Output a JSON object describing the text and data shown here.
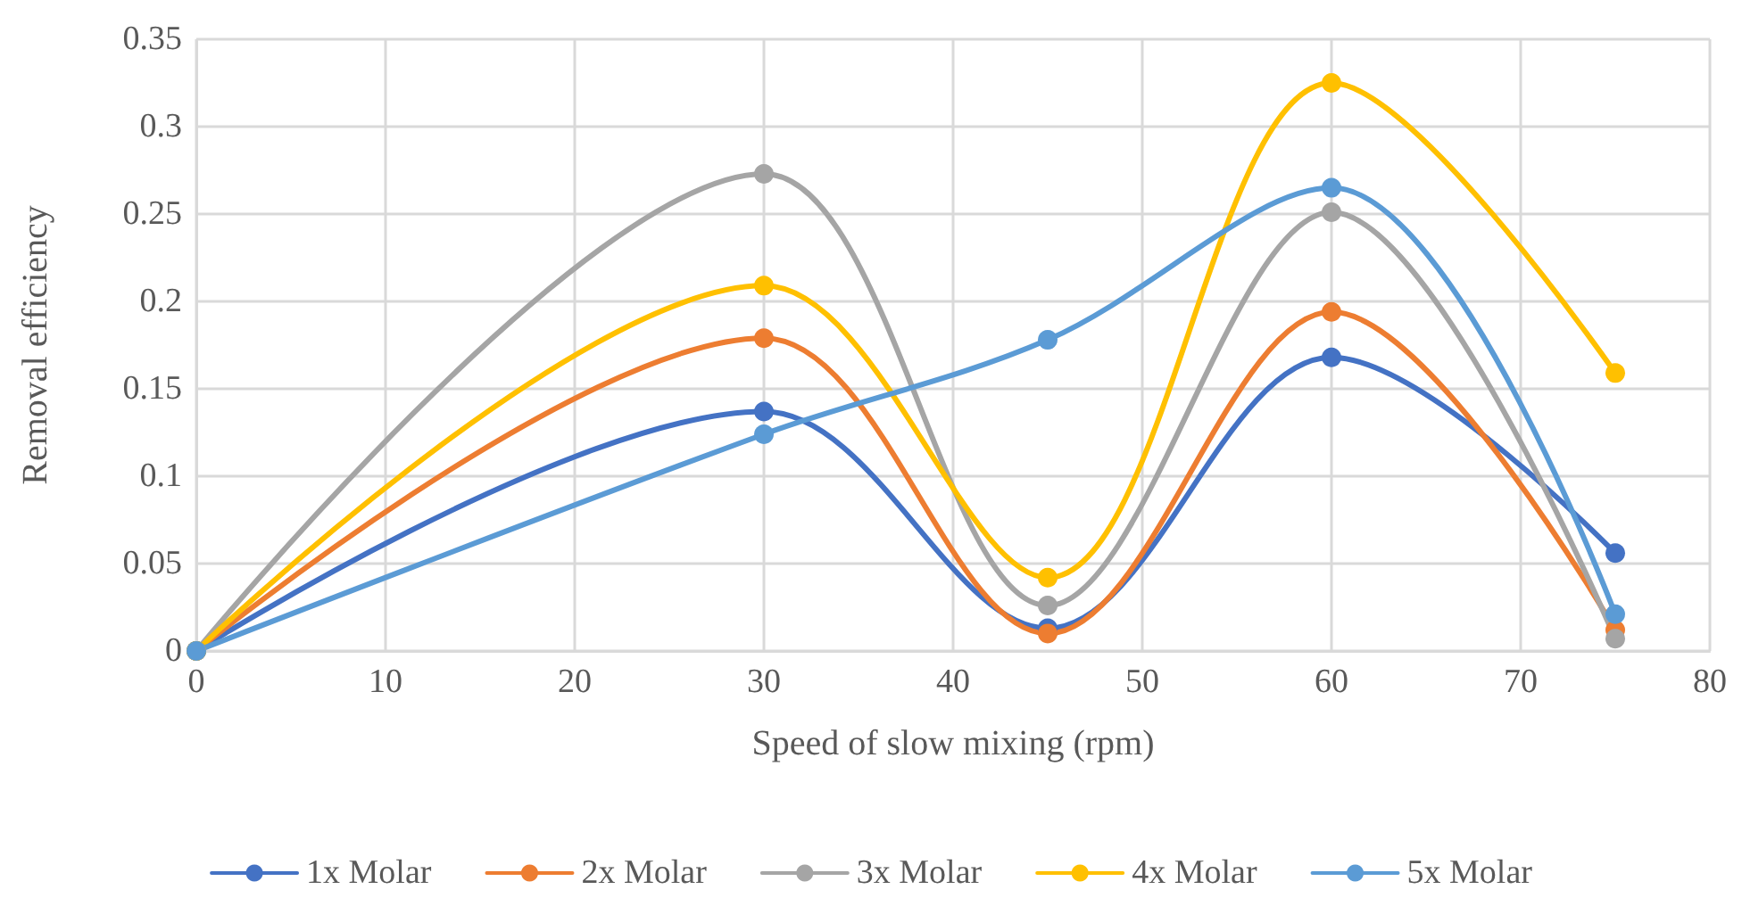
{
  "chart_data": {
    "type": "line",
    "xlabel": "Speed of slow mixing (rpm)",
    "ylabel": "Removal efficiency",
    "x": [
      0,
      30,
      45,
      60,
      75
    ],
    "series": [
      {
        "name": "1x Molar",
        "color": "#4472c4",
        "values": [
          0,
          0.137,
          0.013,
          0.168,
          0.056
        ]
      },
      {
        "name": "2x Molar",
        "color": "#ed7d31",
        "values": [
          0,
          0.179,
          0.01,
          0.194,
          0.012
        ]
      },
      {
        "name": "3x Molar",
        "color": "#a5a5a5",
        "values": [
          0,
          0.273,
          0.026,
          0.251,
          0.007
        ]
      },
      {
        "name": "4x Molar",
        "color": "#ffc000",
        "values": [
          0,
          0.209,
          0.042,
          0.325,
          0.159
        ]
      },
      {
        "name": "5x Molar",
        "color": "#5b9bd5",
        "values": [
          0,
          0.124,
          0.178,
          0.265,
          0.021
        ]
      }
    ],
    "xlim": [
      0,
      80
    ],
    "xticks": [
      0,
      10,
      20,
      30,
      40,
      50,
      60,
      70,
      80
    ],
    "ylim": [
      0,
      0.35
    ],
    "yticks": [
      0,
      0.05,
      0.1,
      0.15,
      0.2,
      0.25,
      0.3,
      0.35
    ],
    "grid": true,
    "legend": "bottom",
    "marker": "circle",
    "line_style": "solid"
  }
}
